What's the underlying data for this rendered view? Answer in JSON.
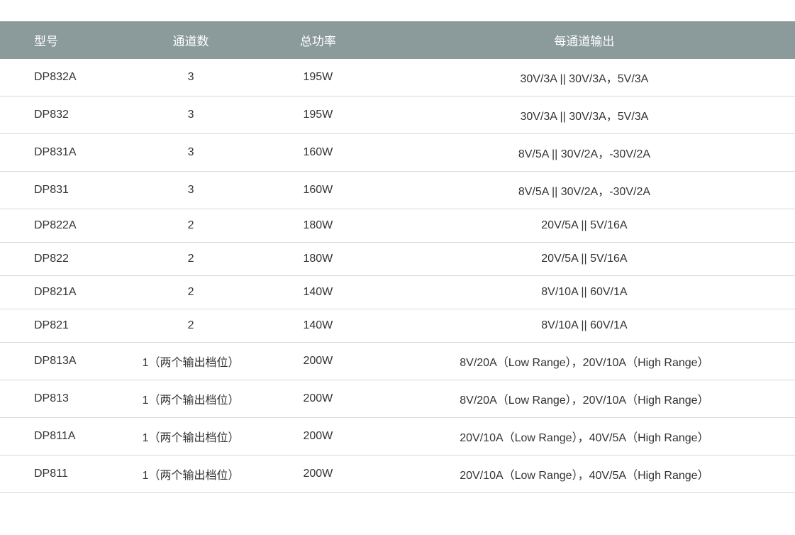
{
  "table": {
    "header_bg": "#8b9a9a",
    "header_text_color": "#ffffff",
    "cell_text_color": "#333333",
    "border_color": "#d8d8d8",
    "font_size_header": 17,
    "font_size_body": 16,
    "columns": [
      {
        "key": "model",
        "label": "型号",
        "width": "15%",
        "align": "left"
      },
      {
        "key": "channels",
        "label": "通道数",
        "width": "18%",
        "align": "center"
      },
      {
        "key": "power",
        "label": "总功率",
        "width": "14%",
        "align": "center"
      },
      {
        "key": "output",
        "label": "每通道输出",
        "width": "53%",
        "align": "center"
      }
    ],
    "rows": [
      {
        "model": "DP832A",
        "channels": "3",
        "power": "195W",
        "output": "30V/3A || 30V/3A，5V/3A"
      },
      {
        "model": "DP832",
        "channels": "3",
        "power": "195W",
        "output": "30V/3A || 30V/3A，5V/3A"
      },
      {
        "model": "DP831A",
        "channels": "3",
        "power": "160W",
        "output": "8V/5A || 30V/2A，-30V/2A"
      },
      {
        "model": "DP831",
        "channels": "3",
        "power": "160W",
        "output": "8V/5A || 30V/2A，-30V/2A"
      },
      {
        "model": "DP822A",
        "channels": "2",
        "power": "180W",
        "output": "20V/5A || 5V/16A"
      },
      {
        "model": "DP822",
        "channels": "2",
        "power": "180W",
        "output": "20V/5A || 5V/16A"
      },
      {
        "model": "DP821A",
        "channels": "2",
        "power": "140W",
        "output": "8V/10A || 60V/1A"
      },
      {
        "model": "DP821",
        "channels": "2",
        "power": "140W",
        "output": "8V/10A || 60V/1A"
      },
      {
        "model": "DP813A",
        "channels": "1（两个输出档位）",
        "power": "200W",
        "output": "8V/20A（Low Range），20V/10A（High Range）"
      },
      {
        "model": "DP813",
        "channels": "1（两个输出档位）",
        "power": "200W",
        "output": "8V/20A（Low Range），20V/10A（High Range）"
      },
      {
        "model": "DP811A",
        "channels": "1（两个输出档位）",
        "power": "200W",
        "output": "20V/10A（Low Range），40V/5A（High Range）"
      },
      {
        "model": "DP811",
        "channels": "1（两个输出档位）",
        "power": "200W",
        "output": "20V/10A（Low Range），40V/5A（High Range）"
      }
    ]
  }
}
